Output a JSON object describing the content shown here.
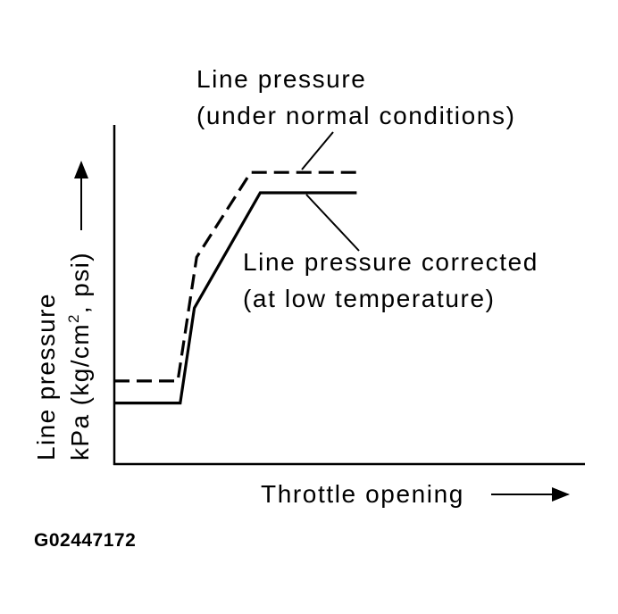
{
  "chart_data": {
    "type": "line",
    "title": "",
    "xlabel": "Throttle opening",
    "ylabel_line1": "Line pressure",
    "ylabel_line2_prefix": "kPa (kg/cm",
    "ylabel_superscript": "2",
    "ylabel_line2_suffix": ", psi)",
    "x_ticks": [],
    "y_ticks": [],
    "xlim": [
      0,
      100
    ],
    "ylim": [
      0,
      100
    ],
    "grid": false,
    "series": [
      {
        "label_line1": "Line pressure",
        "label_line2": "(under normal conditions)",
        "style": "dashed",
        "x": [
          0,
          13.5,
          17.5,
          29,
          51.5
        ],
        "y": [
          24.5,
          24.5,
          61,
          86,
          86
        ]
      },
      {
        "label_line1": "Line pressure corrected",
        "label_line2": "(at low temperature)",
        "style": "solid",
        "x": [
          0,
          14,
          17,
          31,
          51.5
        ],
        "y": [
          18,
          18,
          46,
          80,
          80
        ]
      }
    ]
  },
  "figure_code": "G02447172",
  "colors": {
    "ink": "#000000",
    "background": "#ffffff"
  }
}
